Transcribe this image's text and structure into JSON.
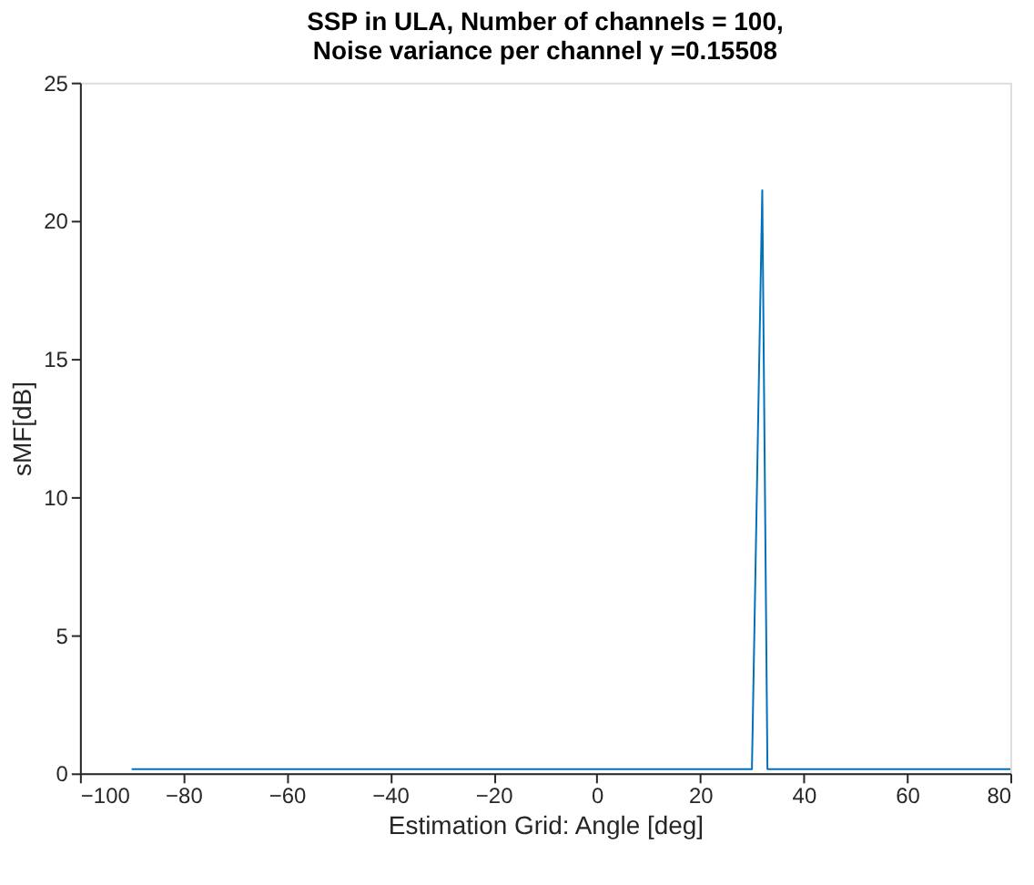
{
  "chart_data": {
    "type": "line",
    "title": [
      "SSP in ULA, Number of channels = 100,",
      "Noise variance per channel γ =0.15508"
    ],
    "xlabel": "Estimation Grid: Angle [deg]",
    "ylabel": "sMF[dB]",
    "series": [
      {
        "color": "#0072bd",
        "x": [
          -90,
          30,
          32,
          33,
          80
        ],
        "values": [
          0.15,
          0.15,
          21.1,
          0.15,
          0.15
        ]
      }
    ],
    "xlim": [
      -100,
      80
    ],
    "xticks": [
      -100,
      -80,
      -60,
      -40,
      -20,
      0,
      20,
      40,
      60,
      80
    ],
    "ylim": [
      0,
      25
    ],
    "yticks": [
      0,
      5,
      10,
      15,
      20,
      25
    ],
    "grid": false,
    "marker": "none",
    "line_style": "solid"
  }
}
